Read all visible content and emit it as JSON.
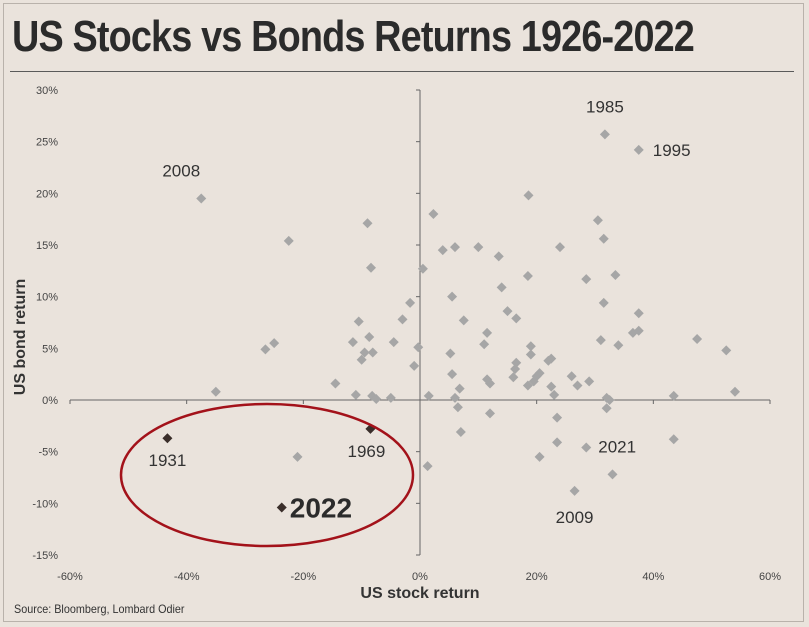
{
  "title": "US Stocks vs Bonds Returns 1926-2022",
  "source": "Source: Bloomberg, Lombard Odier",
  "colors": {
    "background": "#eae3dc",
    "point": "#a6a6a6",
    "highlight_point": "#3a2e2a",
    "ellipse": "#a3121a",
    "axis": "#666666"
  },
  "chart_data": {
    "type": "scatter",
    "title": "US Stocks vs Bonds Returns 1926-2022",
    "xlabel": "US stock return",
    "ylabel": "US bond return",
    "xlim": [
      -60,
      60
    ],
    "ylim": [
      -15,
      30
    ],
    "unit": "%",
    "x_ticks": [
      "-60%",
      "-40%",
      "-20%",
      "0%",
      "20%",
      "40%",
      "60%"
    ],
    "y_ticks": [
      "-15%",
      "-10%",
      "-5%",
      "0%",
      "5%",
      "10%",
      "15%",
      "20%",
      "25%",
      "30%"
    ],
    "grid": false,
    "series": [
      {
        "marker": "diamond",
        "color": "#a6a6a6",
        "points": [
          [
            -37.5,
            19.5
          ],
          [
            -22.5,
            15.4
          ],
          [
            -9,
            17.1
          ],
          [
            -8.4,
            12.8
          ],
          [
            -35,
            0.8
          ],
          [
            -26.5,
            4.9
          ],
          [
            -25,
            5.5
          ],
          [
            -14.5,
            1.6
          ],
          [
            -11.5,
            5.6
          ],
          [
            -10.5,
            7.6
          ],
          [
            -10,
            3.9
          ],
          [
            -11,
            0.5
          ],
          [
            -9.5,
            4.6
          ],
          [
            -8.7,
            6.1
          ],
          [
            -8.1,
            4.6
          ],
          [
            -8.2,
            0.4
          ],
          [
            -7.5,
            0.1
          ],
          [
            -4.5,
            5.6
          ],
          [
            -3,
            7.8
          ],
          [
            -1.7,
            9.4
          ],
          [
            -1,
            3.3
          ],
          [
            -5,
            0.2
          ],
          [
            -0.3,
            5.1
          ],
          [
            0.5,
            12.7
          ],
          [
            1.5,
            0.4
          ],
          [
            2.3,
            18.0
          ],
          [
            3.9,
            14.5
          ],
          [
            6,
            14.8
          ],
          [
            5.5,
            10
          ],
          [
            5.2,
            4.5
          ],
          [
            5.5,
            2.5
          ],
          [
            6,
            0.2
          ],
          [
            6.5,
            -0.7
          ],
          [
            6.8,
            1.1
          ],
          [
            7,
            -3.1
          ],
          [
            7.5,
            7.7
          ],
          [
            10,
            14.8
          ],
          [
            11,
            5.4
          ],
          [
            11.5,
            6.5
          ],
          [
            11.5,
            2.0
          ],
          [
            12,
            1.6
          ],
          [
            12,
            -1.3
          ],
          [
            13.5,
            13.9
          ],
          [
            14,
            10.9
          ],
          [
            15,
            8.6
          ],
          [
            16,
            2.2
          ],
          [
            16.3,
            3
          ],
          [
            16.5,
            3.6
          ],
          [
            16.5,
            7.9
          ],
          [
            18.5,
            12
          ],
          [
            18.5,
            1.4
          ],
          [
            19,
            4.4
          ],
          [
            19,
            5.2
          ],
          [
            19.5,
            1.8
          ],
          [
            20,
            2.3
          ],
          [
            20.5,
            2.6
          ],
          [
            18.6,
            19.8
          ],
          [
            22,
            3.8
          ],
          [
            22.5,
            4
          ],
          [
            22.5,
            1.3
          ],
          [
            23,
            0.5
          ],
          [
            23.5,
            -1.7
          ],
          [
            23.5,
            -4.1
          ],
          [
            24,
            14.8
          ],
          [
            26,
            2.3
          ],
          [
            27,
            1.4
          ],
          [
            28.5,
            11.7
          ],
          [
            29,
            1.8
          ],
          [
            28.5,
            -4.6
          ],
          [
            30.5,
            17.4
          ],
          [
            31,
            5.8
          ],
          [
            31.5,
            9.4
          ],
          [
            31.5,
            15.6
          ],
          [
            32,
            0.2
          ],
          [
            32,
            -0.8
          ],
          [
            32.5,
            0
          ],
          [
            33,
            -7.2
          ],
          [
            33.5,
            12.1
          ],
          [
            34,
            5.3
          ],
          [
            36.5,
            6.5
          ],
          [
            37.5,
            8.4
          ],
          [
            37.5,
            6.7
          ],
          [
            43.5,
            0.4
          ],
          [
            43.5,
            -3.8
          ],
          [
            47.5,
            5.9
          ],
          [
            52.5,
            4.8
          ],
          [
            54,
            0.8
          ],
          [
            -21,
            -5.5
          ],
          [
            20.5,
            -5.5
          ],
          [
            31.7,
            25.7
          ],
          [
            37.5,
            24.2
          ],
          [
            1.3,
            -6.4
          ],
          [
            26.5,
            -8.8
          ]
        ]
      }
    ],
    "highlighted": [
      {
        "label": "1931",
        "x": -43.3,
        "y": -3.7
      },
      {
        "label": "1969",
        "x": -8.5,
        "y": -2.8
      },
      {
        "label": "2022",
        "x": -23.7,
        "y": -10.4
      }
    ],
    "annotations": [
      {
        "label": "2008",
        "x": -37.5,
        "y": 19.5,
        "emphasis": false
      },
      {
        "label": "1985",
        "x": 31.7,
        "y": 25.7,
        "emphasis": false
      },
      {
        "label": "1995",
        "x": 37.5,
        "y": 24.2,
        "emphasis": false
      },
      {
        "label": "2021",
        "x": 28.5,
        "y": -4.6,
        "emphasis": false
      },
      {
        "label": "2009",
        "x": 26.5,
        "y": -8.8,
        "emphasis": false
      },
      {
        "label": "1931",
        "x": -43.3,
        "y": -3.7,
        "emphasis": false
      },
      {
        "label": "1969",
        "x": -8.5,
        "y": -2.8,
        "emphasis": false
      },
      {
        "label": "2022",
        "x": -23.7,
        "y": -10.4,
        "emphasis": true
      }
    ]
  }
}
